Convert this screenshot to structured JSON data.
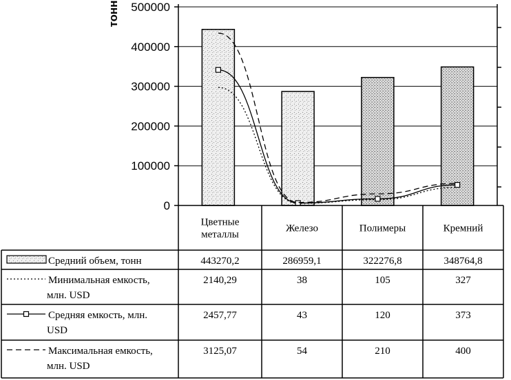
{
  "chart_data": {
    "type": "bar",
    "categories": [
      "Цветные металлы",
      "Железо",
      "Полимеры",
      "Кремний"
    ],
    "category_lines": [
      [
        "Цветные",
        "металлы"
      ],
      [
        "Железо"
      ],
      [
        "Полимеры"
      ],
      [
        "Кремний"
      ]
    ],
    "ylabel": "тонн",
    "ylim": [
      0,
      500000
    ],
    "yticks": [
      "0",
      "100000",
      "200000",
      "300000",
      "400000",
      "500000"
    ],
    "y_gridlines": true,
    "secondary_axis": {
      "ticks_shown": false,
      "ylim": [
        0,
        3600
      ]
    },
    "series": [
      {
        "name": "Средний объем, тонн",
        "name_lines": [
          "Средний объем, тонн"
        ],
        "kind": "bar",
        "axis": "primary",
        "values": [
          443270.2,
          286959.1,
          322276.8,
          348764.8
        ],
        "labels": [
          "443270,2",
          "286959,1",
          "322276,8",
          "348764,8"
        ]
      },
      {
        "name": "Минимальная емкость, млн. USD",
        "name_lines": [
          "Минимальная емкость,",
          "млн. USD"
        ],
        "kind": "line",
        "style": "dotted",
        "axis": "secondary",
        "values": [
          2140.29,
          38,
          105,
          327
        ],
        "labels": [
          "2140,29",
          "38",
          "105",
          "327"
        ]
      },
      {
        "name": "Средняя емкость, млн. USD",
        "name_lines": [
          "Средняя емкость, млн.",
          "USD"
        ],
        "kind": "line",
        "style": "solid",
        "marker": "square",
        "axis": "secondary",
        "values": [
          2457.77,
          43,
          120,
          373
        ],
        "labels": [
          "2457,77",
          "43",
          "120",
          "373"
        ]
      },
      {
        "name": "Максимальная емкость, млн. USD",
        "name_lines": [
          "Максимальная емкость,",
          "млн. USD"
        ],
        "kind": "line",
        "style": "dashed",
        "axis": "secondary",
        "values": [
          3125.07,
          54,
          210,
          400
        ],
        "labels": [
          "3125,07",
          "54",
          "210",
          "400"
        ]
      }
    ],
    "colors": {
      "bar_fill": "#e4e4e4",
      "bar_fill_dark": "#c8c8c8",
      "stroke": "#000000"
    }
  }
}
